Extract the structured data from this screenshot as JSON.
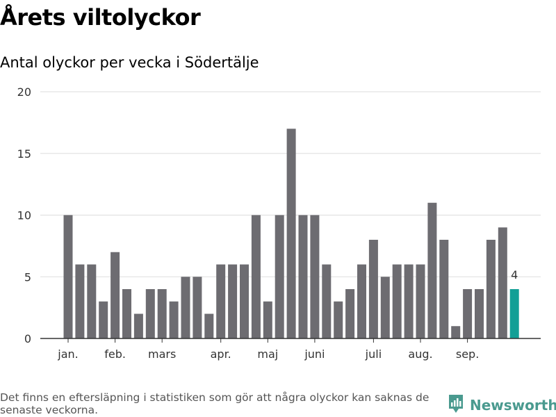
{
  "header": {
    "title": "Årets viltolyckor",
    "subtitle": "Antal olyckor per vecka i Södertälje"
  },
  "footer": {
    "note": "Det finns en eftersläpning i statistiken som gör att några olyckor kan saknas de senaste veckorna.",
    "brand": "Newsworthy"
  },
  "colors": {
    "bar": "#6d6c71",
    "highlight": "#129f96",
    "grid": "#dddddd",
    "axis": "#333333",
    "brand": "#4a9a8f"
  },
  "chart_data": {
    "type": "bar",
    "title": "Årets viltolyckor",
    "subtitle": "Antal olyckor per vecka i Södertälje",
    "xlabel": "",
    "ylabel": "",
    "ylim": [
      0,
      20
    ],
    "yticks": [
      0,
      5,
      10,
      15,
      20
    ],
    "grid": true,
    "weeks": [
      1,
      2,
      3,
      4,
      5,
      6,
      7,
      8,
      9,
      10,
      11,
      12,
      13,
      14,
      15,
      16,
      17,
      18,
      19,
      20,
      21,
      22,
      23,
      24,
      25,
      26,
      27,
      28,
      29,
      30,
      31,
      32,
      33,
      34,
      35,
      36,
      37,
      38,
      39
    ],
    "values": [
      10,
      6,
      6,
      3,
      7,
      4,
      2,
      4,
      4,
      3,
      5,
      5,
      2,
      6,
      6,
      6,
      10,
      3,
      10,
      17,
      10,
      10,
      6,
      3,
      4,
      6,
      8,
      5,
      6,
      6,
      6,
      11,
      8,
      1,
      4,
      4,
      8,
      9,
      4
    ],
    "highlight_index": 38,
    "highlight_label": "4",
    "month_labels": [
      {
        "label": "jan.",
        "week": 1
      },
      {
        "label": "feb.",
        "week": 5
      },
      {
        "label": "mars",
        "week": 9
      },
      {
        "label": "apr.",
        "week": 14
      },
      {
        "label": "maj",
        "week": 18
      },
      {
        "label": "juni",
        "week": 22
      },
      {
        "label": "juli",
        "week": 27
      },
      {
        "label": "aug.",
        "week": 31
      },
      {
        "label": "sep.",
        "week": 35
      }
    ]
  }
}
